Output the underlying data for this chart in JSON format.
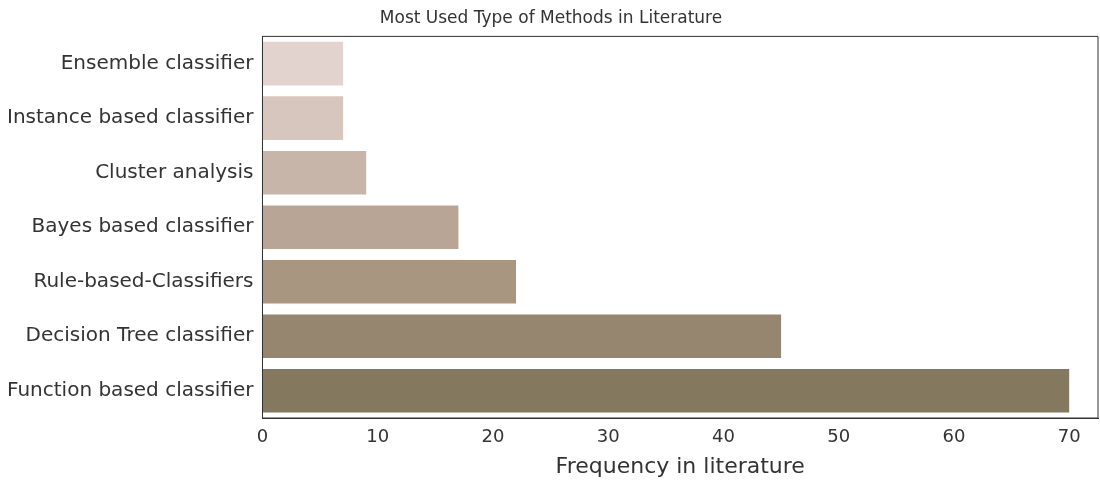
{
  "chart_data": {
    "type": "bar",
    "orientation": "horizontal",
    "title": "Most Used Type of Methods in Literature",
    "xlabel": "Frequency in literature",
    "categories": [
      "Ensemble classifier",
      "Instance based classifier",
      "Cluster analysis",
      "Bayes based classifier",
      "Rule-based-Classifiers",
      "Decision Tree classifier",
      "Function based classifier"
    ],
    "values": [
      7,
      7,
      9,
      17,
      22,
      45,
      70
    ],
    "colors": [
      "#e3d3ce",
      "#d6c6bd",
      "#c8b5aa",
      "#b8a595",
      "#a89680",
      "#968670",
      "#84785e"
    ],
    "xlim": [
      0,
      72.5
    ],
    "xticks": [
      0,
      10,
      20,
      30,
      40,
      50,
      60,
      70
    ],
    "grid": false,
    "legend": false
  }
}
